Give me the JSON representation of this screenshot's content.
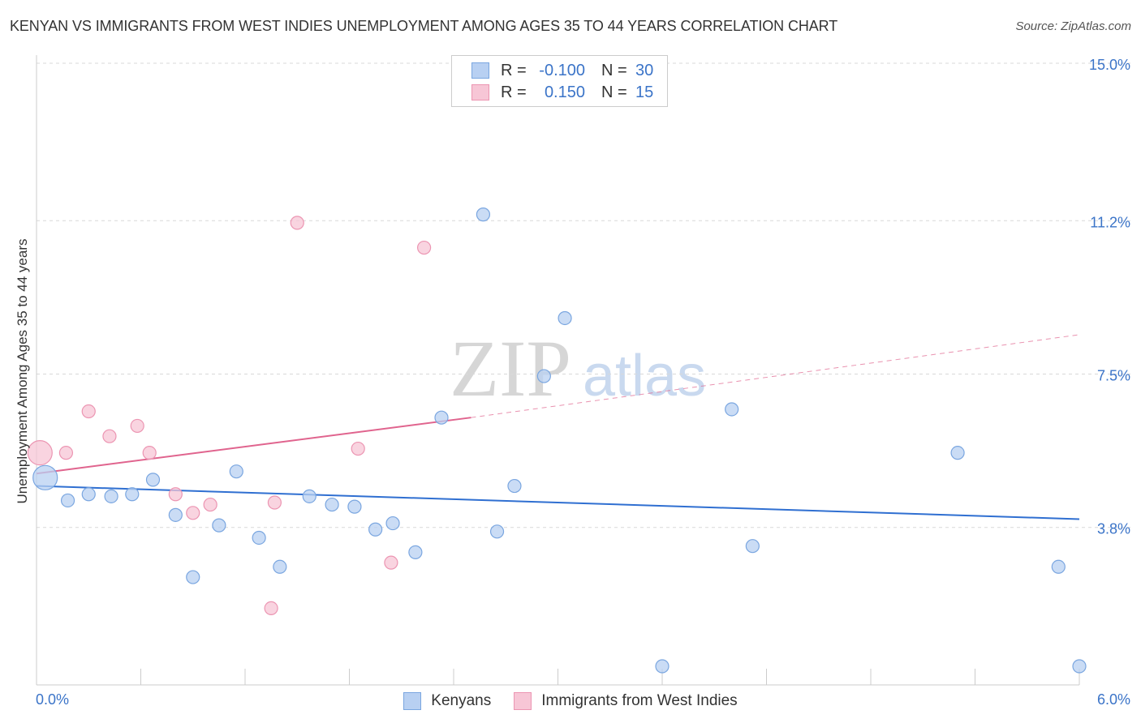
{
  "title": "KENYAN VS IMMIGRANTS FROM WEST INDIES UNEMPLOYMENT AMONG AGES 35 TO 44 YEARS CORRELATION CHART",
  "source": "Source: ZipAtlas.com",
  "watermark": {
    "zip": "ZIP",
    "atlas": "atlas"
  },
  "legend": {
    "rows": [
      {
        "r_label": "R =",
        "r_value": "-0.100",
        "n_label": "N =",
        "n_value": "30"
      },
      {
        "r_label": "R =",
        "r_value": "0.150",
        "n_label": "N =",
        "n_value": "15"
      }
    ]
  },
  "bottom_legend": {
    "series1": "Kenyans",
    "series2": "Immigrants from West Indies"
  },
  "colors": {
    "kenyan_fill": "#b8d0f2",
    "kenyan_stroke": "#7aa6e0",
    "kenyan_line": "#2f6fd1",
    "wi_fill": "#f7c6d6",
    "wi_stroke": "#ec95b2",
    "wi_line": "#e0648e",
    "tick_label": "#3b74c8",
    "grid": "#d9d9d9"
  },
  "chart_data": {
    "type": "scatter",
    "title": "KENYAN VS IMMIGRANTS FROM WEST INDIES UNEMPLOYMENT AMONG AGES 35 TO 44 YEARS CORRELATION CHART",
    "xlabel": "",
    "ylabel": "Unemployment Among Ages 35 to 44 years",
    "xlim": [
      0,
      6.0
    ],
    "ylim": [
      0,
      15.0
    ],
    "x_tick_labels": [
      "0.0%",
      "6.0%"
    ],
    "y_ticks": [
      3.8,
      7.5,
      11.2,
      15.0
    ],
    "y_tick_labels": [
      "3.8%",
      "7.5%",
      "11.2%",
      "15.0%"
    ],
    "grid": true,
    "legend_position": "top-center",
    "series": [
      {
        "name": "Kenyans",
        "r": -0.1,
        "n": 30,
        "trend": {
          "x": [
            0.0,
            6.0
          ],
          "y": [
            4.8,
            4.0
          ]
        },
        "points": [
          {
            "x": 0.05,
            "y": 5.0,
            "big": true
          },
          {
            "x": 0.18,
            "y": 4.45
          },
          {
            "x": 0.3,
            "y": 4.6
          },
          {
            "x": 0.43,
            "y": 4.55
          },
          {
            "x": 0.55,
            "y": 4.6
          },
          {
            "x": 0.67,
            "y": 4.95
          },
          {
            "x": 0.8,
            "y": 4.1
          },
          {
            "x": 0.9,
            "y": 2.6
          },
          {
            "x": 1.05,
            "y": 3.85
          },
          {
            "x": 1.15,
            "y": 5.15
          },
          {
            "x": 1.28,
            "y": 3.55
          },
          {
            "x": 1.4,
            "y": 2.85
          },
          {
            "x": 1.57,
            "y": 4.55
          },
          {
            "x": 1.7,
            "y": 4.35
          },
          {
            "x": 1.83,
            "y": 4.3
          },
          {
            "x": 1.95,
            "y": 3.75
          },
          {
            "x": 2.05,
            "y": 3.9
          },
          {
            "x": 2.18,
            "y": 3.2
          },
          {
            "x": 2.33,
            "y": 6.45
          },
          {
            "x": 2.57,
            "y": 11.35
          },
          {
            "x": 2.65,
            "y": 3.7
          },
          {
            "x": 2.75,
            "y": 4.8
          },
          {
            "x": 2.92,
            "y": 7.45
          },
          {
            "x": 3.04,
            "y": 8.85
          },
          {
            "x": 4.0,
            "y": 6.65
          },
          {
            "x": 4.12,
            "y": 3.35
          },
          {
            "x": 5.3,
            "y": 5.6
          },
          {
            "x": 5.88,
            "y": 2.85
          },
          {
            "x": 3.6,
            "y": 0.45
          },
          {
            "x": 6.0,
            "y": 0.45
          }
        ]
      },
      {
        "name": "Immigrants from West Indies",
        "r": 0.15,
        "n": 15,
        "trend": {
          "x": [
            0.0,
            2.5
          ],
          "y": [
            5.1,
            6.45
          ]
        },
        "trend_extended": {
          "x": [
            2.5,
            6.0
          ],
          "y": [
            6.45,
            8.45
          ]
        },
        "points": [
          {
            "x": 0.02,
            "y": 5.6,
            "big": true
          },
          {
            "x": 0.17,
            "y": 5.6
          },
          {
            "x": 0.3,
            "y": 6.6
          },
          {
            "x": 0.42,
            "y": 6.0
          },
          {
            "x": 0.58,
            "y": 6.25
          },
          {
            "x": 0.65,
            "y": 5.6
          },
          {
            "x": 0.8,
            "y": 4.6
          },
          {
            "x": 0.9,
            "y": 4.15
          },
          {
            "x": 1.0,
            "y": 4.35
          },
          {
            "x": 1.37,
            "y": 4.4
          },
          {
            "x": 1.35,
            "y": 1.85
          },
          {
            "x": 1.5,
            "y": 11.15
          },
          {
            "x": 1.85,
            "y": 5.7
          },
          {
            "x": 2.04,
            "y": 2.95
          },
          {
            "x": 2.23,
            "y": 10.55
          }
        ]
      }
    ]
  }
}
